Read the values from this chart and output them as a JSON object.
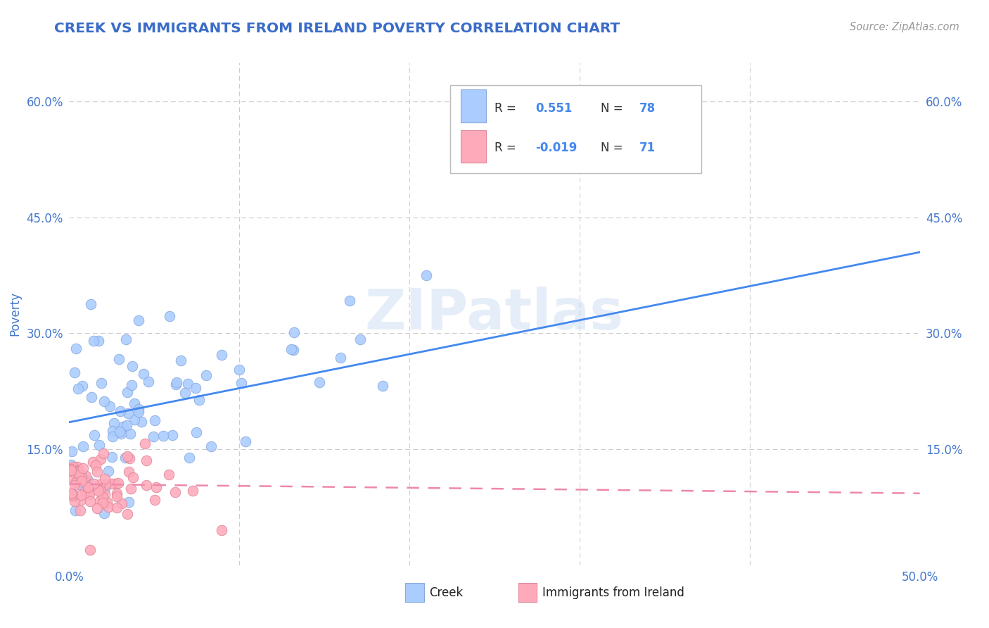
{
  "title": "CREEK VS IMMIGRANTS FROM IRELAND POVERTY CORRELATION CHART",
  "source_text": "Source: ZipAtlas.com",
  "ylabel": "Poverty",
  "legend_creek_R": "0.551",
  "legend_creek_N": "78",
  "legend_ireland_R": "-0.019",
  "legend_ireland_N": "71",
  "watermark": "ZIPatlas",
  "title_color": "#3a6cc8",
  "tick_color": "#4477cc",
  "source_color": "#999999",
  "background_color": "#ffffff",
  "plot_bg_color": "#ffffff",
  "grid_color": "#cccccc",
  "creek_color": "#aaccff",
  "creek_edge_color": "#88aadd",
  "ireland_color": "#ffaabb",
  "ireland_edge_color": "#dd8899",
  "blue_line_color": "#4488ee",
  "pink_line_color": "#ee88aa",
  "legend_R_color": "#4488ee",
  "legend_N_color": "#4488ee",
  "xmin": 0.0,
  "xmax": 0.5,
  "ymin": 0.0,
  "ymax": 0.65,
  "creek_trend_x": [
    0.0,
    0.5
  ],
  "creek_trend_y": [
    0.185,
    0.405
  ],
  "ireland_trend_x": [
    0.0,
    0.5
  ],
  "ireland_trend_y": [
    0.105,
    0.093
  ]
}
